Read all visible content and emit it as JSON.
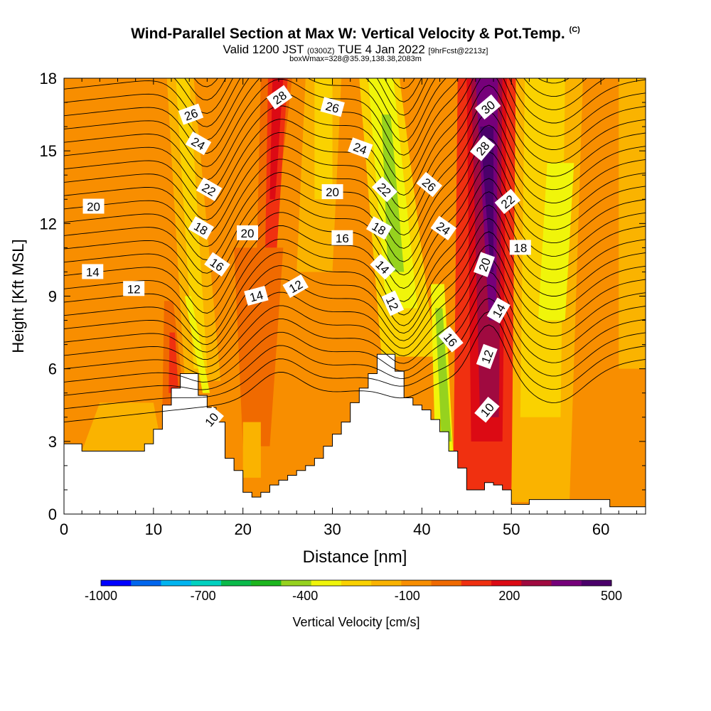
{
  "header": {
    "title_main": "Wind-Parallel Section at Max W: Vertical Velocity & Pot.Temp.",
    "title_mark": "(C)",
    "subtitle_prefix": "Valid 1200 JST",
    "subtitle_utc": "(0300Z)",
    "subtitle_date": "TUE 4 Jan 2022",
    "subtitle_fcst": "[9hrFcst@2213z]",
    "box_info": "boxWmax=328@35.39,138.38,2083m"
  },
  "chart_data": {
    "type": "heatmap",
    "xlabel": "Distance [nm]",
    "ylabel": "Height [Kft MSL]",
    "xlim": [
      0,
      65
    ],
    "ylim": [
      0,
      18
    ],
    "x_ticks": [
      0,
      10,
      20,
      30,
      40,
      50,
      60
    ],
    "y_ticks": [
      0,
      3,
      6,
      9,
      12,
      15,
      18
    ],
    "colorbar": {
      "label": "Vertical Velocity [cm/s]",
      "tick_labels": [
        "-1000",
        "-700",
        "-400",
        "-100",
        "200",
        "500"
      ],
      "tick_values": [
        -1000,
        -700,
        -400,
        -100,
        200,
        500
      ],
      "colors": [
        "#0000ff",
        "#0066ee",
        "#00b4f0",
        "#00d2c0",
        "#0aba4a",
        "#1cb61e",
        "#96d21e",
        "#f0f50a",
        "#fad200",
        "#fab300",
        "#f88e00",
        "#f06a00",
        "#f03010",
        "#dc0a14",
        "#a00a40",
        "#76007a",
        "#4a006a"
      ]
    },
    "theta_contour_labels": [
      "10",
      "12",
      "14",
      "16",
      "18",
      "20",
      "22",
      "24",
      "26",
      "28",
      "30"
    ],
    "theta_label_positions": [
      {
        "t": "26",
        "x": 14.2,
        "y": 16.5,
        "r": -20
      },
      {
        "t": "24",
        "x": 15.0,
        "y": 15.3,
        "r": 30
      },
      {
        "t": "22",
        "x": 16.2,
        "y": 13.4,
        "r": 30
      },
      {
        "t": "20",
        "x": 3.3,
        "y": 12.7,
        "r": 0
      },
      {
        "t": "18",
        "x": 15.3,
        "y": 11.8,
        "r": 30
      },
      {
        "t": "20",
        "x": 20.5,
        "y": 11.6,
        "r": 0
      },
      {
        "t": "16",
        "x": 17.1,
        "y": 10.3,
        "r": 35
      },
      {
        "t": "14",
        "x": 3.2,
        "y": 10.0,
        "r": 0
      },
      {
        "t": "12",
        "x": 7.8,
        "y": 9.3,
        "r": 0
      },
      {
        "t": "14",
        "x": 21.5,
        "y": 9.0,
        "r": -15
      },
      {
        "t": "12",
        "x": 25.9,
        "y": 9.4,
        "r": -30
      },
      {
        "t": "10",
        "x": 16.5,
        "y": 3.9,
        "r": -50
      },
      {
        "t": "28",
        "x": 24.1,
        "y": 17.2,
        "r": -35
      },
      {
        "t": "26",
        "x": 30.0,
        "y": 16.8,
        "r": 15
      },
      {
        "t": "24",
        "x": 33.1,
        "y": 15.1,
        "r": 20
      },
      {
        "t": "20",
        "x": 30.0,
        "y": 13.3,
        "r": 0
      },
      {
        "t": "16",
        "x": 31.1,
        "y": 11.4,
        "r": 0
      },
      {
        "t": "22",
        "x": 35.8,
        "y": 13.4,
        "r": 45
      },
      {
        "t": "18",
        "x": 35.2,
        "y": 11.8,
        "r": 30
      },
      {
        "t": "14",
        "x": 35.6,
        "y": 10.2,
        "r": 45
      },
      {
        "t": "12",
        "x": 36.7,
        "y": 8.7,
        "r": 65
      },
      {
        "t": "26",
        "x": 40.8,
        "y": 13.6,
        "r": 40
      },
      {
        "t": "24",
        "x": 42.4,
        "y": 11.8,
        "r": 35
      },
      {
        "t": "16",
        "x": 43.2,
        "y": 7.2,
        "r": 50
      },
      {
        "t": "30",
        "x": 47.4,
        "y": 16.8,
        "r": -40
      },
      {
        "t": "28",
        "x": 46.8,
        "y": 15.1,
        "r": -50
      },
      {
        "t": "22",
        "x": 49.6,
        "y": 12.9,
        "r": -40
      },
      {
        "t": "18",
        "x": 51.0,
        "y": 11.0,
        "r": 0
      },
      {
        "t": "20",
        "x": 47.0,
        "y": 10.3,
        "r": -70
      },
      {
        "t": "14",
        "x": 48.6,
        "y": 8.4,
        "r": -60
      },
      {
        "t": "12",
        "x": 47.3,
        "y": 6.5,
        "r": -70
      },
      {
        "t": "10",
        "x": 47.3,
        "y": 4.3,
        "r": -50
      }
    ],
    "terrain_profile_x": [
      0,
      2,
      8,
      9,
      10,
      11,
      12,
      13,
      14,
      15,
      16,
      17,
      18,
      19,
      20,
      21,
      22,
      23,
      24,
      25,
      26,
      27,
      28,
      29,
      30,
      31,
      32,
      33,
      34,
      35,
      36,
      37,
      38,
      39,
      40,
      41,
      42,
      43,
      44,
      45,
      46,
      47,
      48,
      49,
      50,
      51,
      52,
      53,
      60,
      61,
      62,
      63,
      64,
      65
    ],
    "terrain_profile_kft": [
      2.9,
      2.6,
      2.6,
      2.9,
      3.5,
      4.5,
      5.2,
      5.8,
      5.8,
      4.9,
      4.4,
      3.8,
      2.3,
      1.8,
      0.9,
      0.7,
      0.9,
      1.2,
      1.4,
      1.6,
      1.8,
      2.0,
      2.3,
      2.8,
      3.3,
      3.8,
      4.6,
      5.2,
      5.8,
      6.6,
      6.6,
      5.9,
      4.8,
      4.5,
      4.3,
      3.9,
      3.4,
      2.6,
      1.9,
      1.0,
      1.0,
      1.3,
      1.2,
      1.0,
      0.4,
      0.4,
      0.6,
      0.6,
      0.6,
      0.3,
      0.3,
      0.3,
      0.3,
      0.3
    ]
  }
}
